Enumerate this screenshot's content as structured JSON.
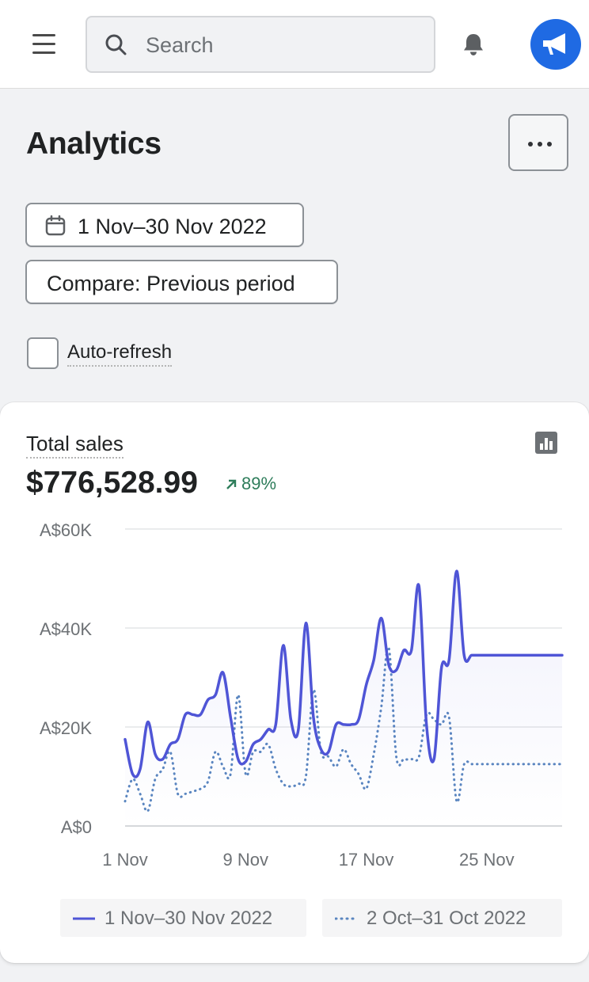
{
  "topbar": {
    "search": {
      "placeholder": "Search",
      "icon": "search-icon"
    },
    "icons": {
      "menu": "menu-icon",
      "notifications": "bell-icon",
      "account": "megaphone-icon"
    },
    "accent_color": "#1f6ae3"
  },
  "page": {
    "title": "Analytics",
    "more_actions_icon": "more-horizontal-icon",
    "date_range_label": "1 Nov–30 Nov 2022",
    "compare_label": "Compare: Previous period",
    "auto_refresh": {
      "label": "Auto-refresh",
      "checked": false
    }
  },
  "card": {
    "title": "Total sales",
    "total_value": "$776,528.99",
    "change": {
      "value": "89%",
      "direction": "up",
      "color": "#2e7d5b"
    },
    "view_icon": "bar-chart-icon"
  },
  "chart_data": {
    "type": "line",
    "title": "",
    "xlabel": "",
    "ylabel": "",
    "ylim": [
      0,
      60000
    ],
    "y_ticks": [
      0,
      20000,
      40000,
      60000
    ],
    "y_tick_labels": [
      "A$0",
      "A$20K",
      "A$40K",
      "A$60K"
    ],
    "x_tick_labels": [
      "1 Nov",
      "9 Nov",
      "17 Nov",
      "25 Nov"
    ],
    "grid": true,
    "legend_position": "bottom",
    "series": [
      {
        "name": "1 Nov–30 Nov 2022",
        "style": "solid",
        "color": "#4f55d6",
        "x": [
          "1 Nov",
          "1 Nov",
          "2 Nov",
          "2 Nov",
          "3 Nov",
          "3 Nov",
          "4 Nov",
          "4 Nov",
          "5 Nov",
          "5 Nov",
          "6 Nov",
          "6 Nov",
          "7 Nov",
          "7 Nov",
          "8 Nov",
          "8 Nov",
          "9 Nov",
          "9 Nov",
          "10 Nov",
          "10 Nov",
          "11 Nov",
          "11 Nov",
          "12 Nov",
          "12 Nov",
          "13 Nov",
          "13 Nov",
          "14 Nov",
          "14 Nov",
          "15 Nov",
          "15 Nov",
          "16 Nov",
          "16 Nov",
          "17 Nov",
          "17 Nov",
          "18 Nov",
          "18 Nov",
          "19 Nov",
          "19 Nov",
          "20 Nov",
          "20 Nov",
          "21 Nov",
          "21 Nov",
          "22 Nov",
          "22 Nov",
          "23 Nov",
          "23 Nov",
          "24 Nov",
          "24 Nov",
          "25 Nov",
          "25 Nov",
          "26 Nov",
          "26 Nov",
          "27 Nov",
          "27 Nov",
          "28 Nov",
          "28 Nov",
          "29 Nov",
          "29 Nov",
          "30 Nov"
        ],
        "values": [
          17500,
          10500,
          11500,
          21000,
          14500,
          13500,
          16500,
          17500,
          22500,
          22500,
          22500,
          25500,
          26500,
          31000,
          22000,
          13500,
          13000,
          16500,
          17500,
          19500,
          20500,
          36500,
          21500,
          19500,
          41000,
          22000,
          15500,
          15000,
          20500,
          20500,
          20500,
          21500,
          28500,
          33500,
          42000,
          32500,
          31500,
          35500,
          35500,
          48500,
          20500,
          13500,
          32000,
          33500,
          51500,
          34500,
          34500,
          34500,
          34500,
          34500,
          34500,
          34500,
          34500,
          34500,
          34500,
          34500,
          34500,
          34500,
          34500
        ]
      },
      {
        "name": "2 Oct–31 Oct 2022",
        "style": "dotted",
        "color": "#5a86c0",
        "x": [
          "2 Oct",
          "2 Oct",
          "3 Oct",
          "3 Oct",
          "4 Oct",
          "4 Oct",
          "5 Oct",
          "5 Oct",
          "6 Oct",
          "6 Oct",
          "7 Oct",
          "7 Oct",
          "8 Oct",
          "8 Oct",
          "9 Oct",
          "9 Oct",
          "10 Oct",
          "10 Oct",
          "11 Oct",
          "11 Oct",
          "12 Oct",
          "12 Oct",
          "13 Oct",
          "13 Oct",
          "14 Oct",
          "14 Oct",
          "15 Oct",
          "15 Oct",
          "16 Oct",
          "16 Oct",
          "17 Oct",
          "17 Oct",
          "18 Oct",
          "18 Oct",
          "19 Oct",
          "19 Oct",
          "20 Oct",
          "20 Oct",
          "21 Oct",
          "21 Oct",
          "22 Oct",
          "22 Oct",
          "23 Oct",
          "23 Oct",
          "24 Oct",
          "24 Oct",
          "25 Oct",
          "25 Oct",
          "26 Oct",
          "26 Oct",
          "27 Oct",
          "27 Oct",
          "28 Oct",
          "28 Oct",
          "29 Oct",
          "29 Oct",
          "30 Oct",
          "30 Oct",
          "31 Oct"
        ],
        "values": [
          5000,
          9500,
          6500,
          3000,
          9500,
          11500,
          15000,
          6500,
          6500,
          7000,
          7500,
          9000,
          15000,
          12000,
          10500,
          26500,
          10500,
          15000,
          15000,
          16500,
          11500,
          8500,
          8000,
          8500,
          10000,
          27500,
          15000,
          14000,
          12000,
          15500,
          12500,
          10500,
          7500,
          14500,
          24000,
          36000,
          14000,
          13500,
          13500,
          14000,
          22500,
          21500,
          20500,
          22000,
          5000,
          12500,
          12500,
          12500,
          12500,
          12500,
          12500,
          12500,
          12500,
          12500,
          12500,
          12500,
          12500,
          12500,
          12500
        ]
      }
    ]
  }
}
